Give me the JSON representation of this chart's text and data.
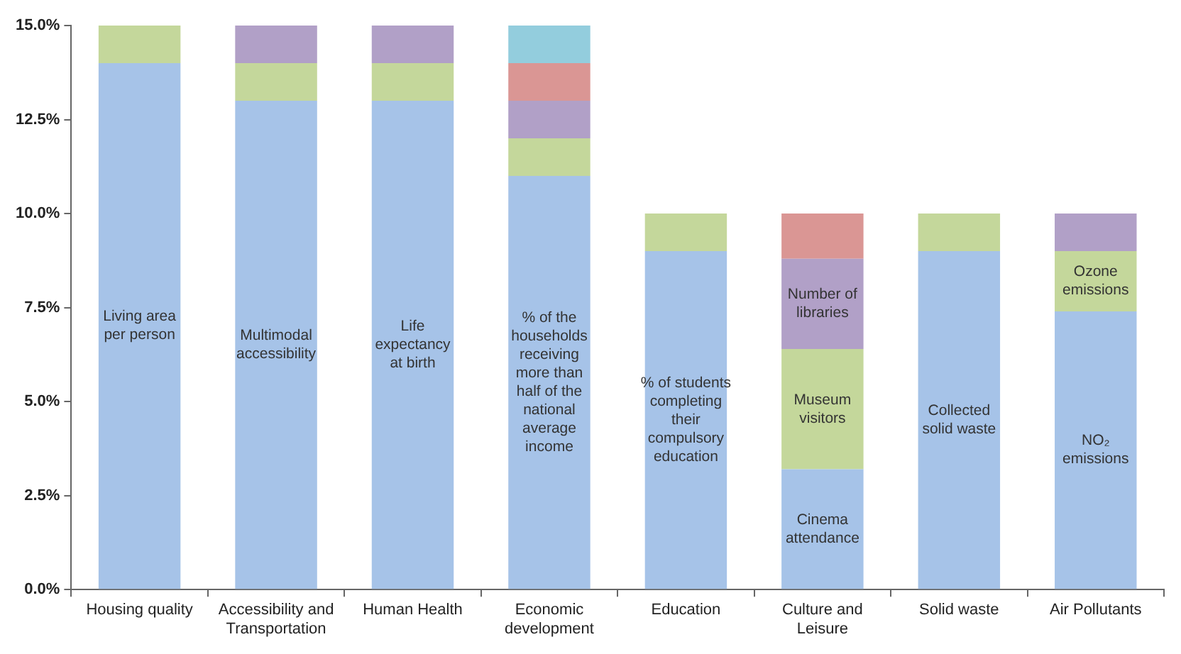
{
  "chart_data": {
    "type": "bar",
    "stacked": true,
    "categories": [
      "Housing quality",
      "Accessibility and Transportation",
      "Human Health",
      "Economic development",
      "Education",
      "Culture and Leisure",
      "Solid waste",
      "Air Pollutants"
    ],
    "series": [
      {
        "color": "#a6c3e8",
        "values": [
          14,
          13,
          13,
          11,
          9,
          3.2,
          9,
          7.4
        ],
        "value_labels": [
          "Living area per person",
          "Multimodal accessibility",
          "Life expectancy at birth",
          "% of the households receiving more than half of the national average income",
          "% of students completing their compulsory education",
          "Cinema attendance",
          "Collected solid waste",
          "NO₂ emissions"
        ]
      },
      {
        "color": "#c4d79b",
        "values": [
          1,
          1,
          1,
          1,
          1,
          3.2,
          1,
          1.6
        ],
        "value_labels": [
          null,
          null,
          null,
          null,
          null,
          "Museum visitors",
          null,
          "Ozone emissions"
        ]
      },
      {
        "color": "#b1a0c7",
        "values": [
          null,
          1,
          1,
          1,
          null,
          2.4,
          null,
          1
        ],
        "value_labels": [
          null,
          null,
          null,
          null,
          null,
          "Number of libraries",
          null,
          null
        ]
      },
      {
        "color": "#da9694",
        "values": [
          null,
          null,
          null,
          1,
          null,
          1.2,
          null,
          null
        ]
      },
      {
        "color": "#93cddd",
        "values": [
          null,
          null,
          null,
          1,
          null,
          null,
          null,
          null
        ]
      }
    ],
    "ylim": [
      0,
      15
    ],
    "yticks": [
      {
        "value": 0,
        "label": "0.0%"
      },
      {
        "value": 2.5,
        "label": "2.5%"
      },
      {
        "value": 5,
        "label": "5.0%"
      },
      {
        "value": 7.5,
        "label": "7.5%"
      },
      {
        "value": 10,
        "label": "10.0%"
      },
      {
        "value": 12.5,
        "label": "12.5%"
      },
      {
        "value": 15,
        "label": "15.0%"
      }
    ],
    "grid": false,
    "legend": false
  }
}
